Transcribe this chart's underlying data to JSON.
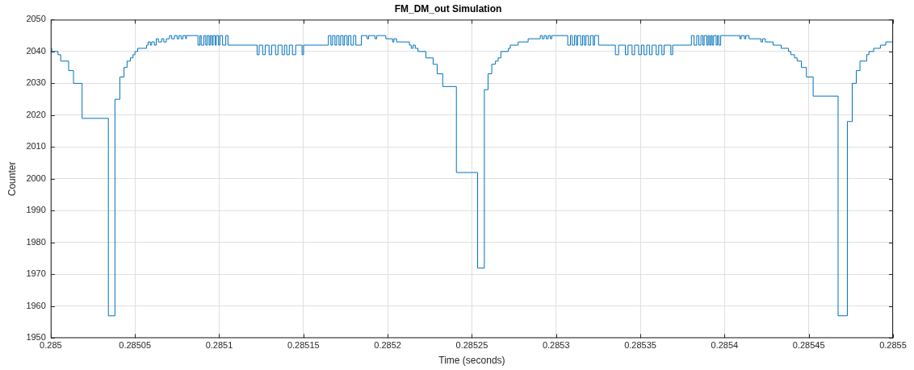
{
  "chart_data": {
    "type": "step",
    "title": "FM_DM_out Simulation",
    "xlabel": "Time (seconds)",
    "ylabel": "Counter",
    "xlim": [
      0.285,
      0.2855
    ],
    "xticks": [
      0.285,
      0.28505,
      0.2851,
      0.28515,
      0.2852,
      0.28525,
      0.2853,
      0.28535,
      0.2854,
      0.28545,
      0.2855
    ],
    "ylim": [
      1950,
      2050
    ],
    "yticks": [
      1950,
      1960,
      1970,
      1980,
      1990,
      2000,
      2010,
      2020,
      2030,
      2040,
      2050
    ],
    "grid": true,
    "marker": "none",
    "line_style": "solid",
    "series": [
      {
        "color": "#0072bd",
        "x": [
          0.285,
          0.2850006,
          0.2850043,
          0.2850059,
          0.2850106,
          0.2850135,
          0.2850186,
          0.2850342,
          0.2850381,
          0.285041,
          0.2850435,
          0.2850453,
          0.2850473,
          0.2850488,
          0.28505,
          0.2850516,
          0.2850569,
          0.2850578,
          0.2850591,
          0.2850599,
          0.2850615,
          0.2850626,
          0.2850639,
          0.2850658,
          0.2850671,
          0.2850686,
          0.2850705,
          0.2850718,
          0.2850734,
          0.285075,
          0.2850761,
          0.2850774,
          0.2850785,
          0.2850801,
          0.2850805,
          0.2850874,
          0.2850885,
          0.2850893,
          0.2850909,
          0.285092,
          0.2850929,
          0.285094,
          0.2850947,
          0.2850957,
          0.2850964,
          0.2850976,
          0.2850983,
          0.2850996,
          0.2851004,
          0.285102,
          0.2851039,
          0.2851052,
          0.285106,
          0.2851225,
          0.2851237,
          0.2851258,
          0.2851273,
          0.2851296,
          0.2851311,
          0.2851334,
          0.2851349,
          0.2851373,
          0.2851387,
          0.2851401,
          0.2851416,
          0.2851435,
          0.2851454,
          0.2851492,
          0.2851501,
          0.2851648,
          0.2851663,
          0.2851673,
          0.2851687,
          0.2851697,
          0.2851711,
          0.2851721,
          0.2851735,
          0.2851744,
          0.2851759,
          0.2851768,
          0.2851782,
          0.2851797,
          0.2851811,
          0.2851844,
          0.2851878,
          0.2851887,
          0.2851925,
          0.2851935,
          0.2851989,
          0.2852029,
          0.2852037,
          0.2852053,
          0.2852129,
          0.285214,
          0.2852151,
          0.2852164,
          0.285218,
          0.2852227,
          0.285227,
          0.2852294,
          0.2852327,
          0.2852408,
          0.2852534,
          0.2852574,
          0.2852596,
          0.2852618,
          0.285264,
          0.2852656,
          0.2852672,
          0.2852717,
          0.2852728,
          0.2852775,
          0.2852834,
          0.2852906,
          0.2852918,
          0.2852929,
          0.2852942,
          0.2852953,
          0.2852966,
          0.2852974,
          0.2853069,
          0.2853085,
          0.2853096,
          0.2853109,
          0.285312,
          0.2853128,
          0.2853146,
          0.2853157,
          0.2853168,
          0.2853177,
          0.2853192,
          0.2853204,
          0.285322,
          0.2853228,
          0.2853252,
          0.2853352,
          0.2853371,
          0.2853411,
          0.2853427,
          0.2853451,
          0.2853466,
          0.285349,
          0.2853506,
          0.2853522,
          0.2853538,
          0.2853554,
          0.285357,
          0.2853594,
          0.2853609,
          0.2853628,
          0.2853641,
          0.2853681,
          0.2853692,
          0.2853803,
          0.2853819,
          0.2853835,
          0.2853847,
          0.285386,
          0.2853871,
          0.2853879,
          0.2853895,
          0.2853903,
          0.2853911,
          0.2853919,
          0.2853927,
          0.2853935,
          0.285395,
          0.2853958,
          0.2853966,
          0.2853977,
          0.2854091,
          0.2854099,
          0.2854118,
          0.2854126,
          0.2854145,
          0.2854216,
          0.2854226,
          0.2854242,
          0.2854288,
          0.2854336,
          0.285438,
          0.2854393,
          0.2854415,
          0.2854431,
          0.2854456,
          0.2854486,
          0.2854526,
          0.2854674,
          0.2854729,
          0.2854758,
          0.2854782,
          0.2854804,
          0.2854844,
          0.2854857,
          0.2854885,
          0.2854925,
          0.2854957,
          0.2855
        ],
        "values": [
          2041,
          2040,
          2039,
          2037,
          2034,
          2030,
          2019,
          1957,
          2025,
          2032,
          2035,
          2037,
          2038,
          2039,
          2040,
          2041,
          2042,
          2043,
          2042,
          2043,
          2042,
          2044,
          2043,
          2044,
          2043,
          2044,
          2045,
          2044,
          2045,
          2044,
          2045,
          2044,
          2045,
          2044,
          2045,
          2042,
          2045,
          2042,
          2045,
          2042,
          2045,
          2042,
          2045,
          2042,
          2045,
          2042,
          2045,
          2042,
          2045,
          2042,
          2045,
          2042,
          2042,
          2039,
          2042,
          2039,
          2042,
          2039,
          2042,
          2039,
          2042,
          2039,
          2042,
          2039,
          2042,
          2039,
          2042,
          2039,
          2042,
          2045,
          2042,
          2045,
          2042,
          2045,
          2042,
          2045,
          2042,
          2045,
          2042,
          2045,
          2042,
          2045,
          2042,
          2045,
          2044,
          2045,
          2044,
          2045,
          2044,
          2043,
          2044,
          2043,
          2042,
          2041,
          2042,
          2041,
          2040,
          2038,
          2036,
          2033,
          2029,
          2002,
          1972,
          2028,
          2033,
          2036,
          2037,
          2038,
          2040,
          2041,
          2042,
          2043,
          2044,
          2045,
          2044,
          2045,
          2044,
          2045,
          2044,
          2045,
          2042,
          2045,
          2042,
          2045,
          2042,
          2045,
          2042,
          2045,
          2042,
          2045,
          2042,
          2045,
          2042,
          2045,
          2042,
          2039,
          2042,
          2039,
          2042,
          2039,
          2042,
          2039,
          2042,
          2039,
          2042,
          2039,
          2042,
          2039,
          2042,
          2039,
          2042,
          2039,
          2042,
          2045,
          2042,
          2045,
          2042,
          2045,
          2042,
          2045,
          2042,
          2045,
          2042,
          2045,
          2042,
          2045,
          2042,
          2045,
          2042,
          2045,
          2044,
          2045,
          2044,
          2045,
          2044,
          2043,
          2044,
          2043,
          2042,
          2041,
          2040,
          2039,
          2038,
          2037,
          2035,
          2032,
          2026,
          1957,
          2018,
          2030,
          2034,
          2037,
          2039,
          2040,
          2041,
          2042,
          2043,
          2043
        ]
      }
    ]
  }
}
